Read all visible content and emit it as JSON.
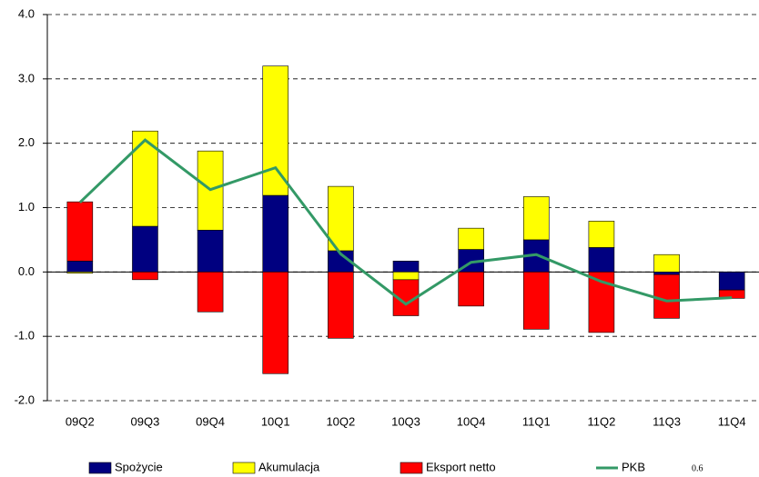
{
  "chart_data": {
    "type": "stacked-bar-line",
    "categories": [
      "09Q2",
      "09Q3",
      "09Q4",
      "10Q1",
      "10Q2",
      "10Q3",
      "10Q4",
      "11Q1",
      "11Q2",
      "11Q3",
      "11Q4"
    ],
    "series": [
      {
        "name": "Spożycie",
        "color": "#000080",
        "kind": "bar",
        "values": [
          0.17,
          0.71,
          0.65,
          1.19,
          0.33,
          0.17,
          0.35,
          0.5,
          0.38,
          -0.04,
          -0.28
        ]
      },
      {
        "name": "Akumulacja",
        "color": "#ffff00",
        "kind": "bar",
        "values": [
          -0.02,
          1.48,
          1.23,
          2.01,
          1.0,
          -0.12,
          0.33,
          0.67,
          0.41,
          0.27,
          0
        ]
      },
      {
        "name": "Eksport netto",
        "color": "#ff0000",
        "kind": "bar",
        "values": [
          0.92,
          -0.12,
          -0.62,
          -1.58,
          -1.03,
          -0.56,
          -0.53,
          -0.89,
          -0.94,
          -0.68,
          -0.13
        ]
      },
      {
        "name": "PKB",
        "color": "#339966",
        "kind": "line",
        "values": [
          1.08,
          2.05,
          1.28,
          1.62,
          0.28,
          -0.5,
          0.15,
          0.27,
          -0.15,
          -0.45,
          -0.4
        ]
      }
    ],
    "ylim": [
      -2,
      4
    ],
    "yticks": [
      {
        "value": -2,
        "label": "-2.0"
      },
      {
        "value": -1,
        "label": "-1.0"
      },
      {
        "value": 0,
        "label": "0.0"
      },
      {
        "value": 1,
        "label": "1.0"
      },
      {
        "value": 2,
        "label": "2.0"
      },
      {
        "value": 3,
        "label": "3.0"
      },
      {
        "value": 4,
        "label": "4.0"
      }
    ],
    "grid": true,
    "legend": "bottom",
    "annotation": "0.6"
  }
}
